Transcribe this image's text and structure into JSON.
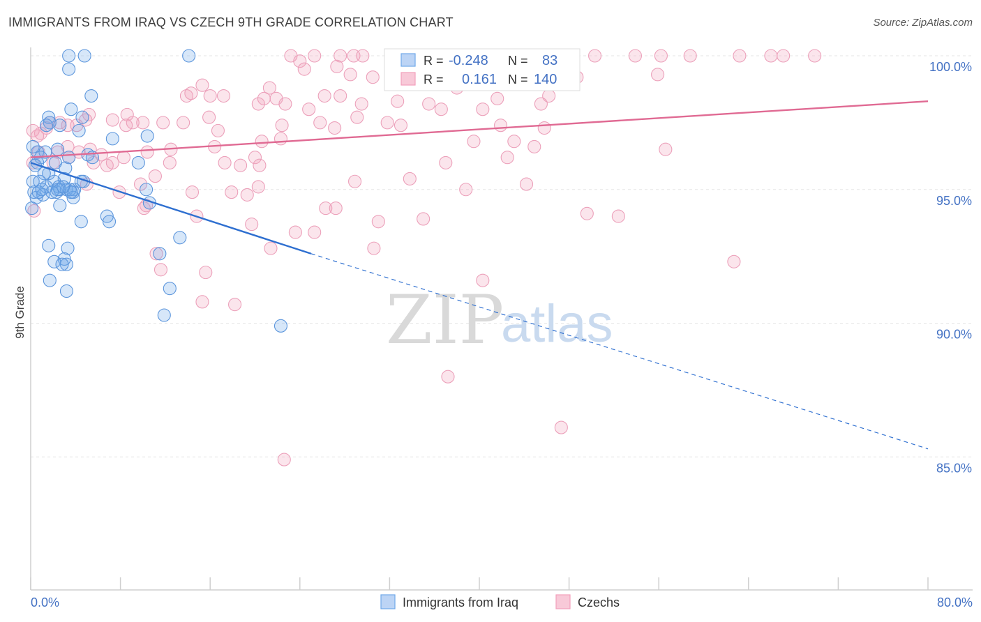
{
  "header": {
    "title": "IMMIGRANTS FROM IRAQ VS CZECH 9TH GRADE CORRELATION CHART",
    "source": "Source: ZipAtlas.com"
  },
  "watermark": {
    "part1": "ZIP",
    "part2": "atlas"
  },
  "legend": {
    "r_label": "R =",
    "n_label": "N =",
    "rows": [
      {
        "r": "-0.248",
        "n": "83",
        "color": "#6fa8e8"
      },
      {
        "r": "0.161",
        "n": "140",
        "color": "#f2a0bc"
      }
    ]
  },
  "bottom_legend": {
    "items": [
      "Immigrants from Iraq",
      "Czechs"
    ]
  },
  "chart_data": {
    "type": "scatter",
    "title": "IMMIGRANTS FROM IRAQ VS CZECH 9TH GRADE CORRELATION CHART",
    "xlabel": "",
    "ylabel": "9th Grade",
    "xlim": [
      0,
      80
    ],
    "ylim": [
      80.3,
      101.0
    ],
    "x_tick_labels": [
      "0.0%",
      "80.0%"
    ],
    "y_ticks": [
      85,
      90,
      95,
      100
    ],
    "y_tick_labels": [
      "85.0%",
      "90.0%",
      "95.0%",
      "100.0%"
    ],
    "grid": true,
    "legend_position": "top-center",
    "colors": {
      "iraq": "#4a86d8",
      "czech": "#e888a8",
      "iraq_line": "#2e6fd0",
      "czech_line": "#e06a93"
    },
    "series": [
      {
        "name": "Immigrants from Iraq",
        "r": -0.248,
        "n": 83,
        "trend": {
          "x0": 0,
          "y0": 96.0,
          "x1": 25,
          "y1": 92.6,
          "dash_to_x": 80,
          "dash_to_y": 85.3
        },
        "points": [
          [
            3.4,
            100
          ],
          [
            4.8,
            100
          ],
          [
            14.1,
            100
          ],
          [
            3.4,
            99.5
          ],
          [
            5.4,
            98.5
          ],
          [
            3.6,
            98.0
          ],
          [
            4.6,
            97.7
          ],
          [
            4.3,
            97.2
          ],
          [
            1.6,
            97.7
          ],
          [
            1.7,
            97.5
          ],
          [
            2.6,
            97.4
          ],
          [
            1.4,
            97.4
          ],
          [
            2.4,
            96.5
          ],
          [
            0.6,
            96.4
          ],
          [
            1.3,
            96.4
          ],
          [
            0.9,
            96.2
          ],
          [
            3.4,
            96.2
          ],
          [
            5.1,
            96.3
          ],
          [
            5.5,
            96.2
          ],
          [
            7.3,
            96.9
          ],
          [
            10.4,
            97.0
          ],
          [
            9.6,
            96.0
          ],
          [
            0.2,
            96.6
          ],
          [
            0.6,
            96.0
          ],
          [
            0.4,
            95.9
          ],
          [
            2.2,
            96.0
          ],
          [
            3.1,
            95.8
          ],
          [
            3.0,
            95.4
          ],
          [
            1.6,
            95.6
          ],
          [
            1.4,
            95.1
          ],
          [
            2.1,
            95.3
          ],
          [
            1.2,
            95.6
          ],
          [
            2.5,
            95.1
          ],
          [
            0.3,
            94.9
          ],
          [
            0.5,
            94.7
          ],
          [
            1.1,
            94.8
          ],
          [
            2.3,
            94.9
          ],
          [
            2.6,
            95.0
          ],
          [
            3.2,
            95.0
          ],
          [
            3.8,
            94.9
          ],
          [
            3.9,
            95.0
          ],
          [
            3.8,
            94.7
          ],
          [
            4.7,
            95.3
          ],
          [
            10.3,
            95.0
          ],
          [
            10.6,
            94.5
          ],
          [
            2.6,
            94.4
          ],
          [
            0.1,
            94.3
          ],
          [
            6.8,
            94.0
          ],
          [
            7.0,
            93.8
          ],
          [
            4.5,
            93.8
          ],
          [
            13.3,
            93.2
          ],
          [
            1.6,
            92.9
          ],
          [
            3.3,
            92.8
          ],
          [
            3.0,
            92.4
          ],
          [
            2.1,
            92.3
          ],
          [
            3.2,
            92.2
          ],
          [
            2.8,
            92.2
          ],
          [
            11.5,
            92.6
          ],
          [
            1.7,
            91.6
          ],
          [
            3.2,
            91.2
          ],
          [
            12.4,
            91.3
          ],
          [
            11.9,
            90.3
          ],
          [
            22.3,
            89.9
          ],
          [
            0.2,
            95.3
          ],
          [
            0.8,
            95.3
          ],
          [
            1.9,
            94.9
          ],
          [
            2.4,
            95.0
          ],
          [
            3.5,
            95.0
          ],
          [
            3.6,
            94.9
          ],
          [
            4.5,
            95.3
          ],
          [
            0.7,
            94.9
          ],
          [
            1.0,
            95.0
          ],
          [
            2.9,
            95.1
          ]
        ]
      },
      {
        "name": "Czechs",
        "r": 0.161,
        "n": 140,
        "trend": {
          "x0": 0,
          "y0": 96.2,
          "x1": 80,
          "y1": 98.3
        },
        "points": [
          [
            23.2,
            100
          ],
          [
            25.3,
            100
          ],
          [
            27.6,
            100
          ],
          [
            28.8,
            100
          ],
          [
            29.6,
            100
          ],
          [
            33.1,
            100
          ],
          [
            44.6,
            100
          ],
          [
            46.3,
            100
          ],
          [
            50.3,
            100
          ],
          [
            53.9,
            100
          ],
          [
            56.2,
            100
          ],
          [
            67.1,
            100
          ],
          [
            69.9,
            100
          ],
          [
            63.2,
            100
          ],
          [
            66.0,
            100
          ],
          [
            58.8,
            100
          ],
          [
            24.0,
            99.8
          ],
          [
            24.4,
            99.5
          ],
          [
            27.3,
            99.6
          ],
          [
            32.3,
            99.8
          ],
          [
            28.5,
            99.3
          ],
          [
            30.5,
            99.2
          ],
          [
            47.8,
            99.2
          ],
          [
            41.6,
            99.2
          ],
          [
            48.7,
            99.2
          ],
          [
            38.5,
            99.0
          ],
          [
            55.9,
            99.3
          ],
          [
            38.0,
            98.8
          ],
          [
            15.3,
            98.9
          ],
          [
            21.3,
            98.8
          ],
          [
            13.9,
            98.5
          ],
          [
            14.3,
            98.6
          ],
          [
            16.0,
            98.5
          ],
          [
            17.2,
            98.5
          ],
          [
            26.2,
            98.5
          ],
          [
            27.6,
            98.5
          ],
          [
            32.7,
            98.3
          ],
          [
            20.3,
            98.2
          ],
          [
            20.8,
            98.4
          ],
          [
            21.9,
            98.4
          ],
          [
            22.7,
            98.2
          ],
          [
            29.5,
            98.2
          ],
          [
            35.5,
            98.2
          ],
          [
            41.6,
            98.4
          ],
          [
            45.5,
            98.2
          ],
          [
            46.2,
            98.5
          ],
          [
            22.4,
            97.4
          ],
          [
            24.8,
            98.0
          ],
          [
            36.6,
            98.0
          ],
          [
            40.3,
            98.0
          ],
          [
            13.6,
            97.5
          ],
          [
            11.8,
            97.5
          ],
          [
            10.0,
            97.5
          ],
          [
            9.1,
            97.5
          ],
          [
            8.6,
            97.8
          ],
          [
            8.5,
            97.4
          ],
          [
            7.3,
            97.6
          ],
          [
            5.2,
            97.8
          ],
          [
            4.9,
            97.6
          ],
          [
            4.1,
            97.4
          ],
          [
            2.6,
            97.5
          ],
          [
            3.3,
            97.4
          ],
          [
            1.7,
            97.5
          ],
          [
            1.4,
            97.3
          ],
          [
            0.9,
            97.1
          ],
          [
            0.2,
            97.2
          ],
          [
            15.9,
            97.7
          ],
          [
            16.7,
            97.2
          ],
          [
            25.8,
            97.5
          ],
          [
            27.1,
            97.3
          ],
          [
            29.1,
            97.7
          ],
          [
            31.8,
            97.5
          ],
          [
            33.0,
            97.4
          ],
          [
            41.9,
            97.4
          ],
          [
            45.8,
            97.3
          ],
          [
            20.6,
            96.8
          ],
          [
            22.3,
            96.9
          ],
          [
            39.5,
            96.8
          ],
          [
            43.1,
            96.8
          ],
          [
            44.9,
            96.6
          ],
          [
            56.6,
            96.5
          ],
          [
            0.7,
            96.4
          ],
          [
            2.4,
            96.4
          ],
          [
            3.3,
            96.6
          ],
          [
            4.3,
            96.4
          ],
          [
            5.3,
            96.5
          ],
          [
            6.3,
            96.3
          ],
          [
            8.3,
            96.2
          ],
          [
            10.4,
            96.4
          ],
          [
            12.5,
            96.5
          ],
          [
            16.4,
            96.6
          ],
          [
            12.4,
            96.0
          ],
          [
            17.3,
            96.0
          ],
          [
            18.7,
            95.9
          ],
          [
            20.0,
            96.2
          ],
          [
            20.4,
            95.9
          ],
          [
            37.0,
            96.0
          ],
          [
            42.5,
            96.2
          ],
          [
            0.2,
            96.0
          ],
          [
            2.0,
            96.0
          ],
          [
            3.4,
            96.2
          ],
          [
            5.6,
            96.0
          ],
          [
            6.8,
            95.9
          ],
          [
            7.3,
            96.0
          ],
          [
            5.0,
            95.2
          ],
          [
            9.8,
            95.2
          ],
          [
            11.1,
            95.5
          ],
          [
            28.9,
            95.3
          ],
          [
            33.8,
            95.4
          ],
          [
            38.8,
            95.0
          ],
          [
            44.2,
            95.2
          ],
          [
            7.9,
            94.9
          ],
          [
            14.4,
            94.9
          ],
          [
            17.9,
            94.9
          ],
          [
            19.3,
            94.8
          ],
          [
            20.3,
            95.1
          ],
          [
            10.1,
            94.3
          ],
          [
            10.3,
            94.4
          ],
          [
            14.8,
            94.0
          ],
          [
            26.3,
            94.3
          ],
          [
            27.2,
            94.3
          ],
          [
            31.0,
            93.8
          ],
          [
            35.0,
            93.9
          ],
          [
            49.6,
            94.1
          ],
          [
            52.4,
            94.0
          ],
          [
            19.7,
            93.7
          ],
          [
            23.6,
            93.4
          ],
          [
            25.3,
            93.4
          ],
          [
            21.4,
            92.8
          ],
          [
            30.6,
            92.8
          ],
          [
            11.2,
            92.6
          ],
          [
            62.7,
            92.3
          ],
          [
            11.6,
            92.0
          ],
          [
            15.6,
            91.9
          ],
          [
            40.3,
            91.6
          ],
          [
            15.3,
            90.8
          ],
          [
            18.2,
            90.7
          ],
          [
            37.2,
            88.0
          ],
          [
            47.3,
            86.1
          ],
          [
            22.6,
            84.9
          ],
          [
            0.3,
            94.2
          ],
          [
            0.6,
            97.0
          ]
        ]
      }
    ]
  }
}
